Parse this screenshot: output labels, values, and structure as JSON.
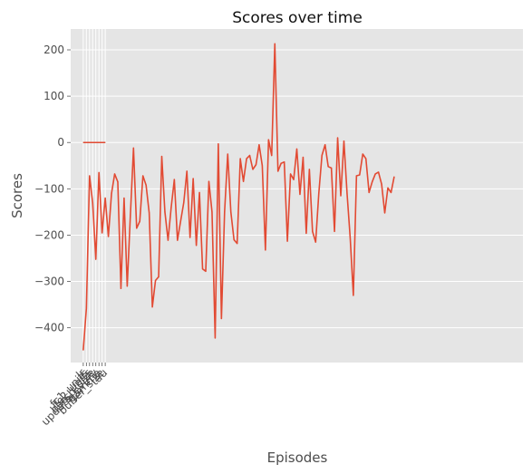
{
  "chart_data": {
    "type": "line",
    "title": "Scores over time",
    "xlabel": "Episodes",
    "ylabel": "Scores",
    "ylim": [
      -475,
      245
    ],
    "xlim": [
      -4,
      140
    ],
    "y_ticks": [
      200,
      100,
      0,
      -100,
      -200,
      -300,
      -400
    ],
    "y_tick_labels": [
      "200",
      "100",
      "0",
      "−100",
      "−200",
      "−300",
      "−400"
    ],
    "x_tick_labels": [
      "lr",
      "fc1_units",
      "fc2_units",
      "batch_size",
      "update_every",
      "gamma",
      "buffer_size",
      "tau"
    ],
    "x_tick_positions": [
      0,
      1,
      2,
      3,
      4,
      5,
      6,
      7
    ],
    "grid": true,
    "series": [
      {
        "color": "#E24A33",
        "values": [
          -448,
          -358,
          -72,
          -130,
          -252,
          -65,
          -195,
          -120,
          -203,
          -110,
          -68,
          -85,
          -315,
          -120,
          -310,
          -158,
          -12,
          -185,
          -170,
          -72,
          -92,
          -152,
          -355,
          -298,
          -290,
          -30,
          -150,
          -211,
          -140,
          -80,
          -211,
          -170,
          -130,
          -62,
          -205,
          -78,
          -222,
          -108,
          -273,
          -278,
          -84,
          -150,
          -422,
          -3,
          -380,
          -150,
          -25,
          -150,
          -210,
          -218,
          -35,
          -84,
          -35,
          -28,
          -58,
          -48,
          -5,
          -50,
          -232,
          6,
          -28,
          213,
          -62,
          -45,
          -42,
          -213,
          -68,
          -80,
          -14,
          -112,
          -32,
          -196,
          -58,
          -192,
          -215,
          -110,
          -28,
          -5,
          -52,
          -55,
          -192,
          10,
          -115,
          3,
          -110,
          -206,
          -330,
          -72,
          -70,
          -25,
          -35,
          -108,
          -85,
          -68,
          -64,
          -90,
          -152,
          -98,
          -108,
          -74
        ]
      }
    ],
    "param_series": [
      {
        "name": "lr",
        "color": "#E24A33",
        "values": [
          0,
          0,
          0,
          0,
          0,
          0,
          0,
          0
        ]
      },
      {
        "name": "fc1_units",
        "color": "#348ABD",
        "values": [
          0,
          0,
          0,
          0,
          0,
          0,
          0,
          0
        ]
      },
      {
        "name": "fc2_units",
        "color": "#988ED5",
        "values": [
          0,
          0,
          0,
          0,
          0,
          0,
          0,
          0
        ]
      },
      {
        "name": "batch_size",
        "color": "#777777",
        "values": [
          0,
          0,
          0,
          0,
          0,
          0,
          0,
          0
        ]
      },
      {
        "name": "update_every",
        "color": "#FBC15E",
        "values": [
          0,
          0,
          0,
          0,
          0,
          0,
          0,
          0
        ]
      },
      {
        "name": "gamma",
        "color": "#8EBA42",
        "values": [
          0,
          0,
          0,
          0,
          0,
          0,
          0,
          0
        ]
      },
      {
        "name": "buffer_size",
        "color": "#FFB5B8",
        "values": [
          0,
          0,
          0,
          0,
          0,
          0,
          0,
          0
        ]
      },
      {
        "name": "tau",
        "color": "#E24A33",
        "values": [
          0,
          0,
          0,
          0,
          0,
          0,
          0,
          0
        ]
      }
    ],
    "colors": {
      "plot_background": "#E5E5E5",
      "grid": "#FFFFFF",
      "text": "#4D4D4D"
    }
  }
}
